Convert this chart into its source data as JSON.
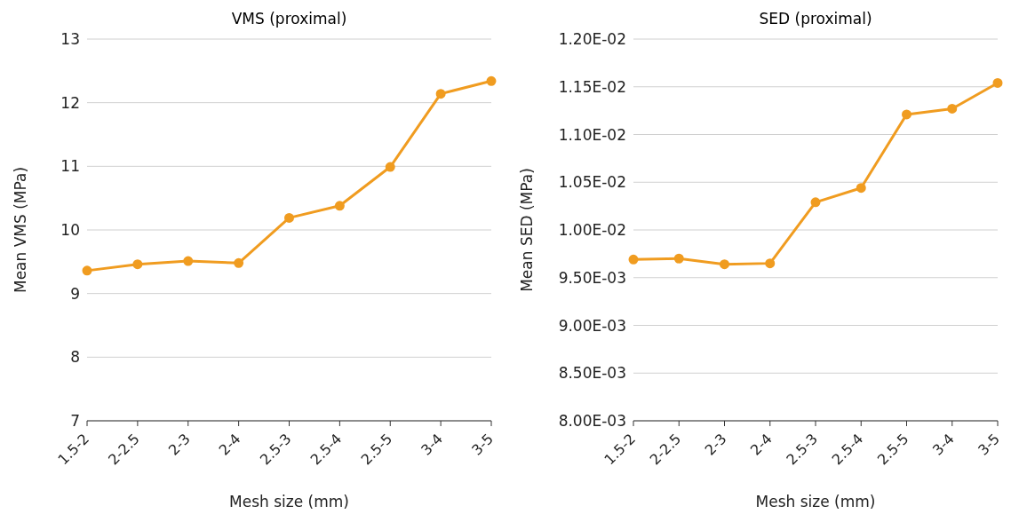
{
  "chart_data": [
    {
      "type": "line",
      "title": "VMS (proximal)",
      "xlabel": "Mesh size (mm)",
      "ylabel": "Mean VMS (MPa)",
      "categories": [
        "1.5-2",
        "2-2.5",
        "2-3",
        "2-4",
        "2.5-3",
        "2.5-4",
        "2.5-5",
        "3-4",
        "3-5"
      ],
      "series": [
        {
          "color": "#f09c20",
          "values": [
            9.36,
            9.46,
            9.51,
            9.48,
            10.19,
            10.38,
            10.99,
            12.14,
            12.34
          ]
        }
      ],
      "ylim": [
        7,
        13
      ],
      "yticks": [
        7,
        8,
        9,
        10,
        11,
        12,
        13
      ],
      "grid": "y",
      "marker": "circle"
    },
    {
      "type": "line",
      "title": "SED (proximal)",
      "xlabel": "Mesh size (mm)",
      "ylabel": "Mean SED (MPa)",
      "categories": [
        "1.5-2",
        "2-2.5",
        "2-3",
        "2-4",
        "2.5-3",
        "2.5-4",
        "2.5-5",
        "3-4",
        "3-5"
      ],
      "series": [
        {
          "color": "#f09c20",
          "values": [
            0.00969,
            0.0097,
            0.00964,
            0.00965,
            0.01029,
            0.01044,
            0.01121,
            0.01127,
            0.01154
          ]
        }
      ],
      "ylim": [
        0.008,
        0.012
      ],
      "yticks": [
        {
          "value": 0.008,
          "label": "8.00E-03"
        },
        {
          "value": 0.0085,
          "label": "8.50E-03"
        },
        {
          "value": 0.009,
          "label": "9.00E-03"
        },
        {
          "value": 0.0095,
          "label": "9.50E-03"
        },
        {
          "value": 0.01,
          "label": "1.00E-02"
        },
        {
          "value": 0.0105,
          "label": "1.05E-02"
        },
        {
          "value": 0.011,
          "label": "1.10E-02"
        },
        {
          "value": 0.0115,
          "label": "1.15E-02"
        },
        {
          "value": 0.012,
          "label": "1.20E-02"
        }
      ],
      "grid": "y",
      "marker": "circle"
    }
  ]
}
